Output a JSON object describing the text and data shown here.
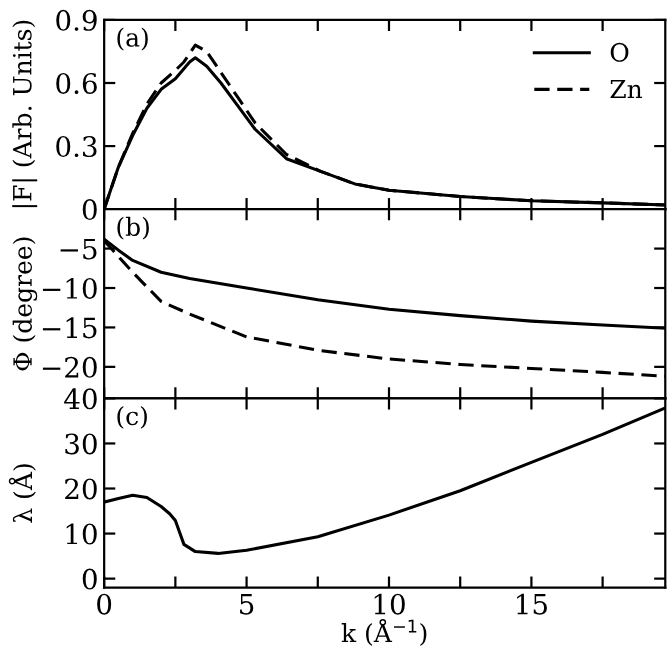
{
  "chart_data": [
    {
      "type": "line",
      "ylabel": "|F| (Arb. Units)",
      "annotations": [
        "(a)"
      ],
      "legend": "top right",
      "tick_labels": "y",
      "xlim": [
        0,
        19.7
      ],
      "xticks": [
        0,
        {
          "value": 2.5,
          "label": null
        },
        5,
        {
          "value": 7.5,
          "label": null
        },
        10,
        {
          "value": 12.5,
          "label": null
        },
        15,
        {
          "value": 17.5,
          "label": null
        }
      ],
      "ylim": [
        0,
        0.9
      ],
      "yticks": [
        0,
        0.3,
        0.6,
        0.9
      ],
      "series": [
        {
          "name": "O",
          "color": "#000000",
          "line_style": "solid",
          "x": [
            0,
            0.5,
            1,
            1.5,
            2,
            2.5,
            3,
            3.2,
            3.6,
            4.1,
            4.7,
            5.3,
            6.4,
            7.6,
            8.8,
            10,
            12.5,
            15,
            17.5,
            19.7
          ],
          "values": [
            0,
            0.2,
            0.35,
            0.48,
            0.57,
            0.62,
            0.7,
            0.72,
            0.68,
            0.6,
            0.49,
            0.38,
            0.24,
            0.18,
            0.12,
            0.09,
            0.06,
            0.04,
            0.03,
            0.02
          ]
        },
        {
          "name": "Zn",
          "color": "#000000",
          "line_style": "dashed",
          "x": [
            0,
            0.5,
            1,
            1.5,
            2,
            2.5,
            2.8,
            3.2,
            3.6,
            4.1,
            4.7,
            5.3,
            6.4,
            7.6,
            8.8,
            10,
            12.5,
            15,
            17.5,
            19.7
          ],
          "values": [
            0,
            0.2,
            0.36,
            0.5,
            0.6,
            0.66,
            0.7,
            0.78,
            0.75,
            0.65,
            0.53,
            0.41,
            0.26,
            0.18,
            0.12,
            0.09,
            0.06,
            0.04,
            0.03,
            0.02
          ]
        }
      ]
    },
    {
      "type": "line",
      "ylabel": "Φ (degree)",
      "annotations": [
        "(b)"
      ],
      "tick_labels": "y",
      "xlim": [
        0,
        19.7
      ],
      "xticks": [
        0,
        {
          "value": 2.5,
          "label": null
        },
        5,
        {
          "value": 7.5,
          "label": null
        },
        10,
        {
          "value": 12.5,
          "label": null
        },
        15,
        {
          "value": 17.5,
          "label": null
        }
      ],
      "ylim": [
        -24,
        0
      ],
      "yticks": [
        -5,
        -10,
        -15,
        -20
      ],
      "series": [
        {
          "color": "#000000",
          "line_style": "solid",
          "x": [
            0,
            0.5,
            1,
            2,
            3,
            5,
            7.5,
            10,
            12.5,
            15,
            17.5,
            19.7
          ],
          "values": [
            -3.8,
            -5.2,
            -6.5,
            -8,
            -8.8,
            -10,
            -11.5,
            -12.7,
            -13.5,
            -14.2,
            -14.7,
            -15.1
          ]
        },
        {
          "color": "#000000",
          "line_style": "dashed",
          "x": [
            0,
            0.5,
            1,
            2,
            3,
            5,
            7.5,
            10,
            12.5,
            15,
            17.5,
            19.7
          ],
          "values": [
            -4,
            -6,
            -8,
            -11.7,
            -13.3,
            -16.2,
            -17.9,
            -19,
            -19.7,
            -20.2,
            -20.7,
            -21.2
          ]
        }
      ]
    },
    {
      "type": "line",
      "ylabel": "λ (Å)",
      "xlabel": "k (Å$^{−1}$)",
      "annotations": [
        "(c)"
      ],
      "xlim": [
        0,
        19.7
      ],
      "xticks": [
        0,
        {
          "value": 2.5,
          "label": null
        },
        5,
        {
          "value": 7.5,
          "label": null
        },
        10,
        {
          "value": 12.5,
          "label": null
        },
        15,
        {
          "value": 17.5,
          "label": null
        }
      ],
      "ylim": [
        -2,
        40
      ],
      "yticks": [
        0,
        10,
        20,
        30,
        40
      ],
      "series": [
        {
          "color": "#000000",
          "line_style": "solid",
          "x": [
            0,
            0.5,
            1,
            1.5,
            2,
            2.3,
            2.5,
            2.8,
            3.2,
            4,
            5,
            7.5,
            10,
            12.5,
            15,
            17.5,
            19.7
          ],
          "values": [
            17,
            17.8,
            18.5,
            18,
            16,
            14.4,
            12.9,
            7.6,
            6,
            5.6,
            6.3,
            9.3,
            14.1,
            19.5,
            25.8,
            32,
            37.9
          ]
        }
      ]
    }
  ]
}
